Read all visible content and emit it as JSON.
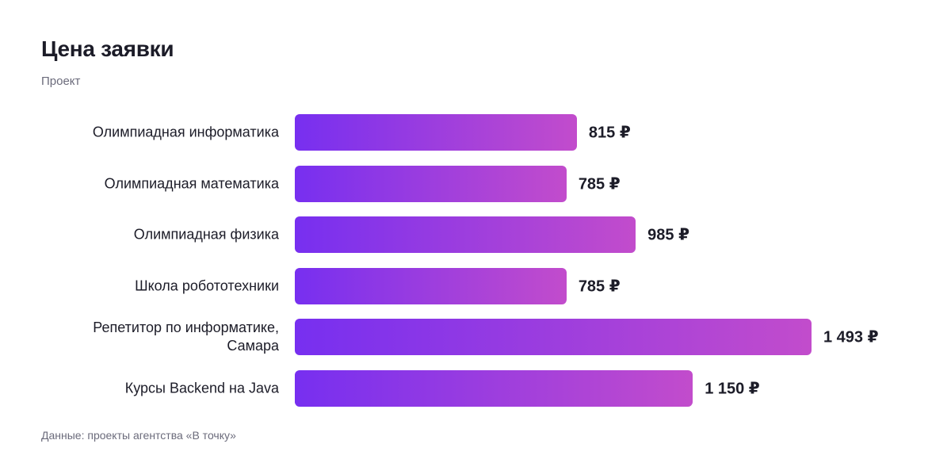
{
  "chart_data": {
    "type": "bar",
    "orientation": "horizontal",
    "title": "Цена заявки",
    "subtitle": "Проект",
    "source": "Данные: проекты агентства «В точку»",
    "categories": [
      "Олимпиадная информатика",
      "Олимпиадная математика",
      "Олимпиадная физика",
      "Школа робототехники",
      "Репетитор по информатике, Самара",
      "Курсы Backend на Java"
    ],
    "values": [
      815,
      785,
      985,
      785,
      1493,
      1150
    ],
    "value_labels": [
      "815 ₽",
      "785 ₽",
      "985 ₽",
      "785 ₽",
      "1 493 ₽",
      "1 150 ₽"
    ],
    "gradient": [
      "#772ff0",
      "#c24ccc"
    ]
  }
}
